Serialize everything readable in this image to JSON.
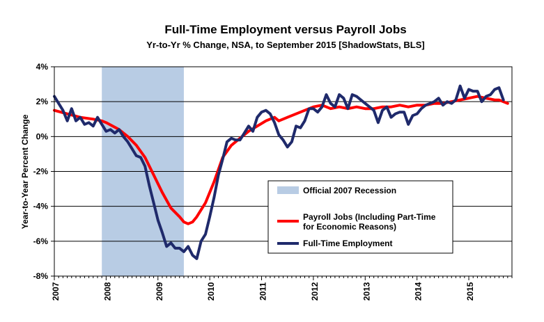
{
  "chart_data": {
    "type": "line",
    "title": "Full-Time Employment  versus Payroll Jobs",
    "subtitle": "Yr-to-Yr % Change, NSA, to September 2015 [ShadowStats, BLS]",
    "ylabel": "Year-to-Year Percent Change",
    "xlabel": "",
    "ylim": [
      -8,
      4
    ],
    "xlim": [
      2007.0,
      2015.833
    ],
    "grid": "horizontal",
    "legend_position": "bottom-right",
    "y_ticks": [
      "4%",
      "2%",
      "0%",
      "-2%",
      "-4%",
      "-6%",
      "-8%"
    ],
    "y_tick_values": [
      4,
      2,
      0,
      -2,
      -4,
      -6,
      -8
    ],
    "x_ticks": [
      "2007",
      "2008",
      "2009",
      "2010",
      "2011",
      "2012",
      "2013",
      "2014",
      "2015"
    ],
    "x_tick_values": [
      2007,
      2008,
      2009,
      2010,
      2011,
      2012,
      2013,
      2014,
      2015
    ],
    "recession": {
      "name": "Official 2007 Recession",
      "start": 2007.917,
      "end": 2009.5,
      "color": "#b8cce4"
    },
    "series": [
      {
        "name": "Payroll Jobs (Including Part-Time for Economic Reasons)",
        "color": "#ff0000",
        "points": [
          [
            2007.0,
            1.5
          ],
          [
            2007.25,
            1.3
          ],
          [
            2007.5,
            1.1
          ],
          [
            2007.75,
            1.0
          ],
          [
            2007.917,
            0.9
          ],
          [
            2008.0,
            0.8
          ],
          [
            2008.25,
            0.4
          ],
          [
            2008.417,
            0.0
          ],
          [
            2008.583,
            -0.5
          ],
          [
            2008.75,
            -1.2
          ],
          [
            2008.917,
            -2.2
          ],
          [
            2009.083,
            -3.2
          ],
          [
            2009.25,
            -4.1
          ],
          [
            2009.417,
            -4.6
          ],
          [
            2009.5,
            -4.9
          ],
          [
            2009.583,
            -5.0
          ],
          [
            2009.667,
            -4.9
          ],
          [
            2009.75,
            -4.6
          ],
          [
            2009.917,
            -3.8
          ],
          [
            2010.083,
            -2.6
          ],
          [
            2010.25,
            -1.2
          ],
          [
            2010.417,
            -0.5
          ],
          [
            2010.583,
            -0.1
          ],
          [
            2010.75,
            0.3
          ],
          [
            2010.917,
            0.6
          ],
          [
            2011.083,
            0.9
          ],
          [
            2011.25,
            1.1
          ],
          [
            2011.333,
            0.9
          ],
          [
            2011.5,
            1.1
          ],
          [
            2011.667,
            1.3
          ],
          [
            2011.833,
            1.5
          ],
          [
            2012.0,
            1.7
          ],
          [
            2012.167,
            1.8
          ],
          [
            2012.333,
            1.6
          ],
          [
            2012.5,
            1.7
          ],
          [
            2012.667,
            1.6
          ],
          [
            2012.833,
            1.7
          ],
          [
            2013.0,
            1.6
          ],
          [
            2013.167,
            1.6
          ],
          [
            2013.333,
            1.7
          ],
          [
            2013.5,
            1.7
          ],
          [
            2013.667,
            1.8
          ],
          [
            2013.833,
            1.7
          ],
          [
            2014.0,
            1.8
          ],
          [
            2014.167,
            1.8
          ],
          [
            2014.333,
            1.9
          ],
          [
            2014.5,
            1.9
          ],
          [
            2014.667,
            2.0
          ],
          [
            2014.833,
            2.1
          ],
          [
            2015.0,
            2.2
          ],
          [
            2015.167,
            2.3
          ],
          [
            2015.333,
            2.2
          ],
          [
            2015.5,
            2.1
          ],
          [
            2015.583,
            2.1
          ],
          [
            2015.75,
            1.9
          ]
        ]
      },
      {
        "name": "Full-Time Employment",
        "color": "#1f2a6b",
        "points": [
          [
            2007.0,
            2.3
          ],
          [
            2007.083,
            1.9
          ],
          [
            2007.167,
            1.5
          ],
          [
            2007.25,
            0.9
          ],
          [
            2007.333,
            1.6
          ],
          [
            2007.417,
            0.9
          ],
          [
            2007.5,
            1.1
          ],
          [
            2007.583,
            0.7
          ],
          [
            2007.667,
            0.8
          ],
          [
            2007.75,
            0.6
          ],
          [
            2007.833,
            1.1
          ],
          [
            2007.917,
            0.7
          ],
          [
            2008.0,
            0.3
          ],
          [
            2008.083,
            0.4
          ],
          [
            2008.167,
            0.2
          ],
          [
            2008.25,
            0.4
          ],
          [
            2008.333,
            0.0
          ],
          [
            2008.417,
            -0.3
          ],
          [
            2008.5,
            -0.7
          ],
          [
            2008.583,
            -1.1
          ],
          [
            2008.667,
            -1.2
          ],
          [
            2008.75,
            -1.7
          ],
          [
            2008.833,
            -2.8
          ],
          [
            2008.917,
            -3.8
          ],
          [
            2009.0,
            -4.8
          ],
          [
            2009.083,
            -5.5
          ],
          [
            2009.167,
            -6.3
          ],
          [
            2009.25,
            -6.1
          ],
          [
            2009.333,
            -6.4
          ],
          [
            2009.417,
            -6.4
          ],
          [
            2009.5,
            -6.6
          ],
          [
            2009.583,
            -6.3
          ],
          [
            2009.667,
            -6.8
          ],
          [
            2009.75,
            -7.0
          ],
          [
            2009.833,
            -6.0
          ],
          [
            2009.917,
            -5.6
          ],
          [
            2010.0,
            -4.6
          ],
          [
            2010.083,
            -3.5
          ],
          [
            2010.167,
            -2.2
          ],
          [
            2010.25,
            -1.3
          ],
          [
            2010.333,
            -0.3
          ],
          [
            2010.417,
            -0.1
          ],
          [
            2010.5,
            -0.2
          ],
          [
            2010.583,
            -0.2
          ],
          [
            2010.667,
            0.2
          ],
          [
            2010.75,
            0.6
          ],
          [
            2010.833,
            0.3
          ],
          [
            2010.917,
            1.1
          ],
          [
            2011.0,
            1.4
          ],
          [
            2011.083,
            1.5
          ],
          [
            2011.167,
            1.3
          ],
          [
            2011.25,
            0.8
          ],
          [
            2011.333,
            0.1
          ],
          [
            2011.417,
            -0.2
          ],
          [
            2011.5,
            -0.6
          ],
          [
            2011.583,
            -0.3
          ],
          [
            2011.667,
            0.6
          ],
          [
            2011.75,
            0.5
          ],
          [
            2011.833,
            0.9
          ],
          [
            2011.917,
            1.6
          ],
          [
            2012.0,
            1.6
          ],
          [
            2012.083,
            1.4
          ],
          [
            2012.167,
            1.7
          ],
          [
            2012.25,
            2.4
          ],
          [
            2012.333,
            1.9
          ],
          [
            2012.417,
            1.7
          ],
          [
            2012.5,
            2.4
          ],
          [
            2012.583,
            2.2
          ],
          [
            2012.667,
            1.6
          ],
          [
            2012.75,
            2.4
          ],
          [
            2012.833,
            2.3
          ],
          [
            2012.917,
            2.1
          ],
          [
            2013.0,
            1.9
          ],
          [
            2013.083,
            1.7
          ],
          [
            2013.167,
            1.5
          ],
          [
            2013.25,
            0.8
          ],
          [
            2013.333,
            1.5
          ],
          [
            2013.417,
            1.7
          ],
          [
            2013.5,
            1.1
          ],
          [
            2013.583,
            1.3
          ],
          [
            2013.667,
            1.4
          ],
          [
            2013.75,
            1.4
          ],
          [
            2013.833,
            0.7
          ],
          [
            2013.917,
            1.2
          ],
          [
            2014.0,
            1.3
          ],
          [
            2014.083,
            1.6
          ],
          [
            2014.167,
            1.8
          ],
          [
            2014.25,
            1.9
          ],
          [
            2014.333,
            2.0
          ],
          [
            2014.417,
            2.2
          ],
          [
            2014.5,
            1.8
          ],
          [
            2014.583,
            2.0
          ],
          [
            2014.667,
            1.9
          ],
          [
            2014.75,
            2.1
          ],
          [
            2014.833,
            2.9
          ],
          [
            2014.917,
            2.2
          ],
          [
            2015.0,
            2.7
          ],
          [
            2015.083,
            2.6
          ],
          [
            2015.167,
            2.6
          ],
          [
            2015.25,
            2.0
          ],
          [
            2015.333,
            2.3
          ],
          [
            2015.417,
            2.4
          ],
          [
            2015.5,
            2.7
          ],
          [
            2015.583,
            2.8
          ],
          [
            2015.667,
            2.1
          ]
        ]
      }
    ],
    "legend": {
      "recession_label": "Official 2007 Recession",
      "payroll_label_line1": "Payroll Jobs (Including Part-Time",
      "payroll_label_line2": "for Economic Reasons)",
      "fulltime_label": "Full-Time Employment"
    }
  }
}
